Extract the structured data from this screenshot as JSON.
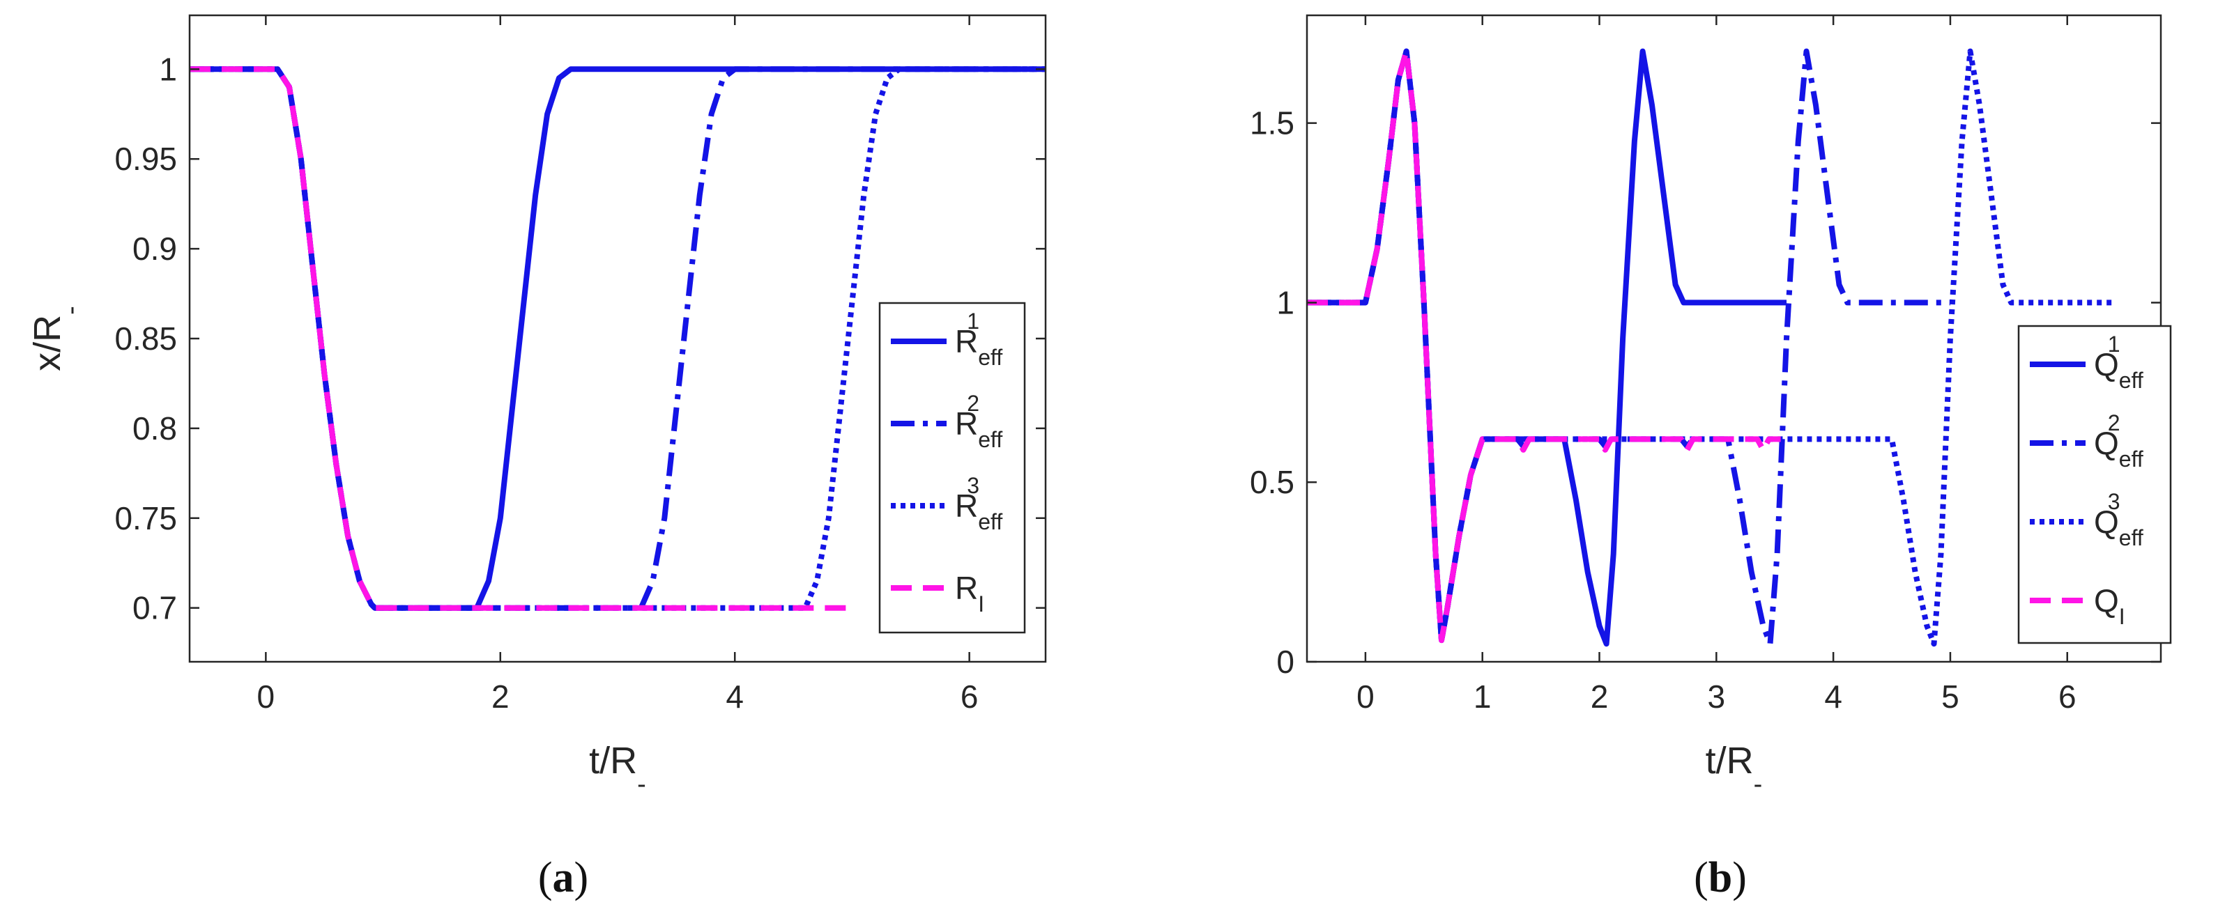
{
  "colors": {
    "effective": "#1414e6",
    "instantaneous": "#ff14e6",
    "axis": "#262626"
  },
  "captions": {
    "a": {
      "open": "(",
      "letter": "a",
      "close": ")"
    },
    "b": {
      "open": "(",
      "letter": "b",
      "close": ")"
    }
  },
  "chart_data": [
    {
      "type": "line",
      "panel": "a",
      "xlabel": "t/R",
      "xlabel_sub": "-",
      "ylabel": "x/R",
      "ylabel_sub": "-",
      "xlim": [
        -0.65,
        6.65
      ],
      "ylim": [
        0.67,
        1.03
      ],
      "xticks": [
        0,
        2,
        4,
        6
      ],
      "xtick_labels": [
        "0",
        "2",
        "4",
        "6"
      ],
      "yticks": [
        0.7,
        0.75,
        0.8,
        0.85,
        0.9,
        0.95,
        1.0
      ],
      "ytick_labels": [
        "0.7",
        "0.75",
        "0.8",
        "0.85",
        "0.9",
        "0.95",
        "1"
      ],
      "legend_position": "right",
      "series": [
        {
          "name": "R",
          "sub": "eff",
          "sup": "1",
          "style": "solid",
          "color": "#1414e6",
          "x": [
            -0.65,
            0.1,
            0.2,
            0.3,
            0.4,
            0.5,
            0.6,
            0.7,
            0.8,
            0.9,
            0.93,
            1.8,
            1.9,
            2.0,
            2.1,
            2.2,
            2.3,
            2.4,
            2.5,
            2.6,
            6.65
          ],
          "y": [
            1.0,
            1.0,
            0.99,
            0.95,
            0.89,
            0.83,
            0.78,
            0.74,
            0.715,
            0.702,
            0.7,
            0.7,
            0.715,
            0.75,
            0.81,
            0.87,
            0.93,
            0.975,
            0.995,
            1.0,
            1.0
          ]
        },
        {
          "name": "R",
          "sub": "eff",
          "sup": "2",
          "style": "dashdot",
          "color": "#1414e6",
          "x": [
            -0.65,
            0.1,
            0.2,
            0.3,
            0.4,
            0.5,
            0.6,
            0.7,
            0.8,
            0.9,
            0.93,
            3.2,
            3.3,
            3.4,
            3.5,
            3.6,
            3.7,
            3.8,
            3.9,
            4.0,
            6.65
          ],
          "y": [
            1.0,
            1.0,
            0.99,
            0.95,
            0.89,
            0.83,
            0.78,
            0.74,
            0.715,
            0.702,
            0.7,
            0.7,
            0.715,
            0.75,
            0.81,
            0.87,
            0.93,
            0.975,
            0.995,
            1.0,
            1.0
          ]
        },
        {
          "name": "R",
          "sub": "eff",
          "sup": "3",
          "style": "dotted",
          "color": "#1414e6",
          "x": [
            -0.65,
            0.1,
            0.2,
            0.3,
            0.4,
            0.5,
            0.6,
            0.7,
            0.8,
            0.9,
            0.93,
            4.6,
            4.7,
            4.8,
            4.9,
            5.0,
            5.1,
            5.2,
            5.3,
            5.4,
            6.65
          ],
          "y": [
            1.0,
            1.0,
            0.99,
            0.95,
            0.89,
            0.83,
            0.78,
            0.74,
            0.715,
            0.702,
            0.7,
            0.7,
            0.715,
            0.75,
            0.81,
            0.87,
            0.93,
            0.975,
            0.995,
            1.0,
            1.0
          ]
        },
        {
          "name": "R",
          "sub": "I",
          "sup": "",
          "style": "dashed",
          "color": "#ff14e6",
          "x": [
            -0.65,
            0.1,
            0.2,
            0.3,
            0.4,
            0.5,
            0.6,
            0.7,
            0.8,
            0.9,
            0.93,
            4.95
          ],
          "y": [
            1.0,
            1.0,
            0.99,
            0.95,
            0.89,
            0.83,
            0.78,
            0.74,
            0.715,
            0.702,
            0.7,
            0.7
          ]
        }
      ]
    },
    {
      "type": "line",
      "panel": "b",
      "xlabel": "t/R",
      "xlabel_sub": "-",
      "ylabel": "",
      "ylabel_sub": "",
      "xlim": [
        -0.5,
        6.8
      ],
      "ylim": [
        0.0,
        1.8
      ],
      "xticks": [
        0,
        1,
        2,
        3,
        4,
        5,
        6
      ],
      "xtick_labels": [
        "0",
        "1",
        "2",
        "3",
        "4",
        "5",
        "6"
      ],
      "yticks": [
        0.0,
        0.5,
        1.0,
        1.5
      ],
      "ytick_labels": [
        "0",
        "0.5",
        "1",
        "1.5"
      ],
      "legend_position": "right",
      "series": [
        {
          "name": "Q",
          "sub": "eff",
          "sup": "1",
          "style": "solid",
          "color": "#1414e6",
          "x": [
            -0.5,
            0.0,
            0.1,
            0.2,
            0.28,
            0.35,
            0.42,
            0.5,
            0.6,
            0.65,
            0.7,
            0.8,
            0.9,
            1.0,
            1.1,
            1.2,
            1.3,
            1.4,
            1.5,
            1.6,
            1.7,
            1.8,
            1.9,
            2.0,
            2.06,
            2.12,
            2.2,
            2.3,
            2.37,
            2.45,
            2.55,
            2.65,
            2.72,
            3.6
          ],
          "y": [
            1.0,
            1.0,
            1.15,
            1.4,
            1.62,
            1.7,
            1.5,
            1.0,
            0.3,
            0.06,
            0.15,
            0.35,
            0.52,
            0.62,
            0.62,
            0.62,
            0.62,
            0.62,
            0.62,
            0.62,
            0.62,
            0.45,
            0.25,
            0.1,
            0.05,
            0.3,
            0.9,
            1.45,
            1.7,
            1.55,
            1.3,
            1.05,
            1.0,
            1.0
          ]
        },
        {
          "name": "Q",
          "sub": "eff",
          "sup": "2",
          "style": "dashdot",
          "color": "#1414e6",
          "x": [
            -0.5,
            0.0,
            0.1,
            0.2,
            0.28,
            0.35,
            0.42,
            0.5,
            0.6,
            0.65,
            0.7,
            0.8,
            0.9,
            1.0,
            1.3,
            1.35,
            1.4,
            2.0,
            2.05,
            2.1,
            2.7,
            2.75,
            2.8,
            3.1,
            3.2,
            3.3,
            3.4,
            3.46,
            3.52,
            3.6,
            3.7,
            3.77,
            3.85,
            3.95,
            4.05,
            4.12,
            5.0
          ],
          "y": [
            1.0,
            1.0,
            1.15,
            1.4,
            1.62,
            1.7,
            1.5,
            1.0,
            0.3,
            0.06,
            0.15,
            0.35,
            0.52,
            0.62,
            0.62,
            0.6,
            0.62,
            0.62,
            0.6,
            0.62,
            0.62,
            0.6,
            0.62,
            0.62,
            0.45,
            0.25,
            0.1,
            0.05,
            0.3,
            0.9,
            1.45,
            1.7,
            1.55,
            1.3,
            1.05,
            1.0,
            1.0
          ]
        },
        {
          "name": "Q",
          "sub": "eff",
          "sup": "3",
          "style": "dotted",
          "color": "#1414e6",
          "x": [
            -0.5,
            0.0,
            0.1,
            0.2,
            0.28,
            0.35,
            0.42,
            0.5,
            0.6,
            0.65,
            0.7,
            0.8,
            0.9,
            1.0,
            4.5,
            4.6,
            4.7,
            4.8,
            4.86,
            4.92,
            5.0,
            5.1,
            5.17,
            5.25,
            5.35,
            5.45,
            5.52,
            6.4
          ],
          "y": [
            1.0,
            1.0,
            1.15,
            1.4,
            1.62,
            1.7,
            1.5,
            1.0,
            0.3,
            0.06,
            0.15,
            0.35,
            0.52,
            0.62,
            0.62,
            0.45,
            0.25,
            0.1,
            0.05,
            0.3,
            0.9,
            1.45,
            1.7,
            1.55,
            1.3,
            1.05,
            1.0,
            1.0
          ]
        },
        {
          "name": "Q",
          "sub": "I",
          "sup": "",
          "style": "dashed",
          "color": "#ff14e6",
          "x": [
            -0.5,
            0.0,
            0.1,
            0.2,
            0.28,
            0.35,
            0.42,
            0.5,
            0.6,
            0.65,
            0.7,
            0.8,
            0.9,
            1.0,
            1.3,
            1.35,
            1.4,
            2.0,
            2.05,
            2.1,
            2.7,
            2.75,
            2.8,
            3.35,
            3.4,
            3.45,
            3.55
          ],
          "y": [
            1.0,
            1.0,
            1.15,
            1.4,
            1.62,
            1.7,
            1.5,
            1.0,
            0.3,
            0.06,
            0.15,
            0.35,
            0.52,
            0.62,
            0.62,
            0.59,
            0.62,
            0.62,
            0.59,
            0.62,
            0.62,
            0.59,
            0.62,
            0.62,
            0.59,
            0.62,
            0.62
          ]
        }
      ]
    }
  ]
}
